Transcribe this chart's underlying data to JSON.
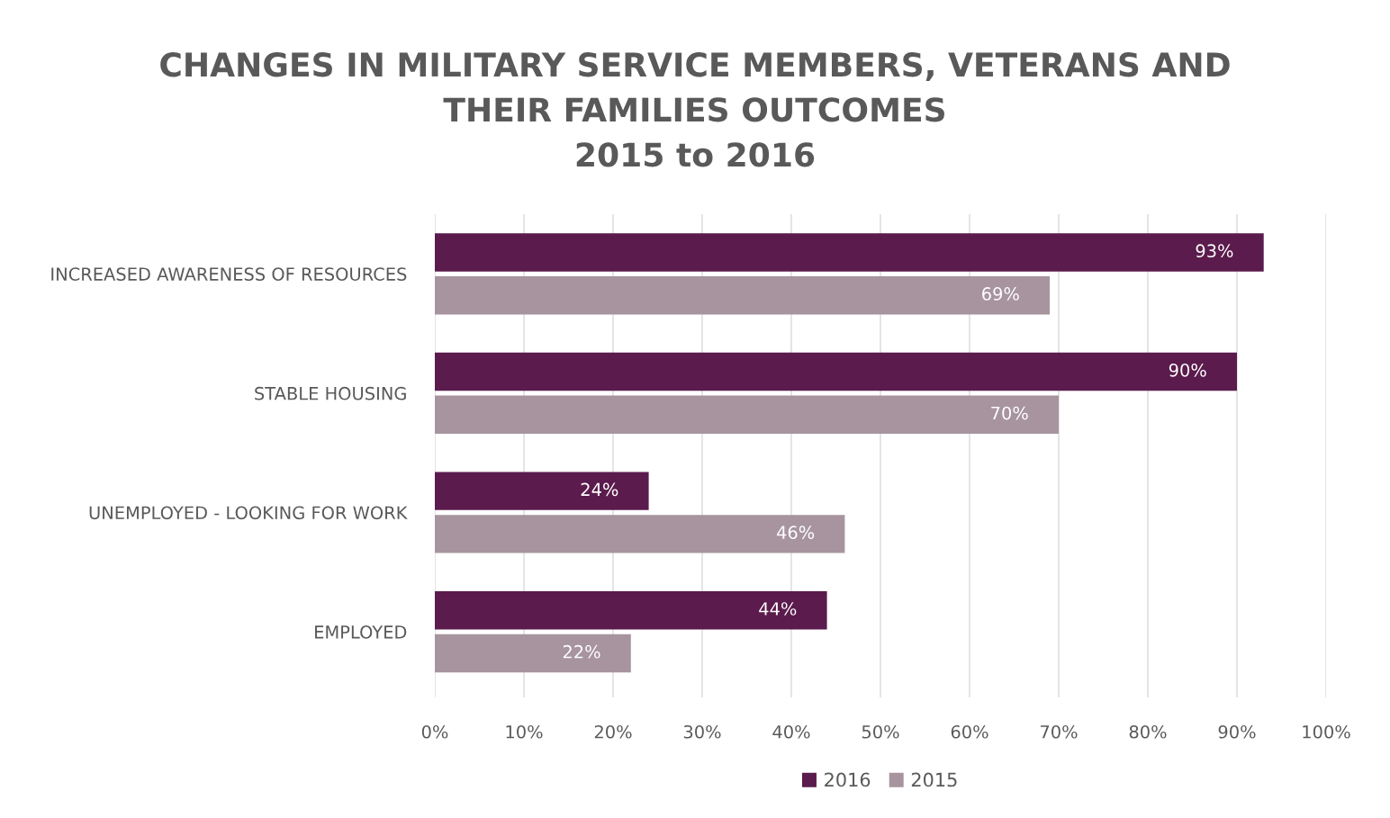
{
  "chart_data": {
    "type": "bar",
    "orientation": "horizontal",
    "title": "CHANGES IN MILITARY SERVICE MEMBERS, VETERANS AND\nTHEIR FAMILIES OUTCOMES\n2015 to 2016",
    "categories": [
      "INCREASED AWARENESS OF RESOURCES",
      "STABLE HOUSING",
      "UNEMPLOYED - LOOKING FOR WORK",
      "EMPLOYED"
    ],
    "series": [
      {
        "name": "2016",
        "color": "#5b1b4c",
        "values": [
          93,
          90,
          24,
          44
        ],
        "value_labels": [
          "93%",
          "90%",
          "24%",
          "44%"
        ]
      },
      {
        "name": "2015",
        "color": "#a7949f",
        "values": [
          69,
          70,
          46,
          22
        ],
        "value_labels": [
          "69%",
          "70%",
          "46%",
          "22%"
        ]
      }
    ],
    "xlim": [
      0,
      100
    ],
    "xticks": [
      {
        "value": 0,
        "label": "0%"
      },
      {
        "value": 10,
        "label": "10%"
      },
      {
        "value": 20,
        "label": "20%"
      },
      {
        "value": 30,
        "label": "30%"
      },
      {
        "value": 40,
        "label": "40%"
      },
      {
        "value": 50,
        "label": "50%"
      },
      {
        "value": 60,
        "label": "60%"
      },
      {
        "value": 70,
        "label": "70%"
      },
      {
        "value": 80,
        "label": "80%"
      },
      {
        "value": 90,
        "label": "90%"
      },
      {
        "value": 100,
        "label": "100%"
      }
    ],
    "grid": "x",
    "legend": "bottom"
  }
}
